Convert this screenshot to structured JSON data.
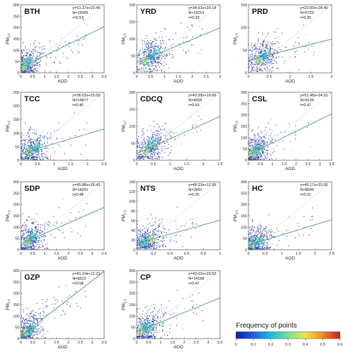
{
  "chart_data": {
    "type": "scatter",
    "xlabel": "AOD",
    "ylabel": "PM",
    "ylabel_sub": "2.5",
    "legend": {
      "title": "Frequency of points",
      "ticks": [
        "0",
        "0.1",
        "0.2",
        "0.3",
        "0.4",
        "0.5",
        "0.6"
      ],
      "colors": [
        "#0b1e9c",
        "#1f5fe0",
        "#22b6e6",
        "#6fe39a",
        "#e8e64a",
        "#f08a2a",
        "#c81a1a"
      ]
    },
    "panels": [
      {
        "region": "BTH",
        "stats": [
          "y=51.37x+23.40",
          "N=15005",
          "r=0.53"
        ],
        "slope": 51.37,
        "intercept": 23.4,
        "xlim": [
          0,
          3.5
        ],
        "ylim": [
          0,
          300
        ],
        "xticks": [
          "0",
          "0.5",
          "1",
          "1.5",
          "2",
          "2.5",
          "3",
          "3.5"
        ],
        "yticks": [
          "0",
          "50",
          "100",
          "150",
          "200",
          "250",
          "300"
        ],
        "density": [
          [
            0.25,
            35
          ],
          [
            0.35,
            55
          ],
          [
            0.15,
            25
          ]
        ]
      },
      {
        "region": "YRD",
        "stats": [
          "y=34.53x+29.18",
          "N=15214",
          "r=0.33"
        ],
        "slope": 34.53,
        "intercept": 29.18,
        "xlim": [
          0,
          3
        ],
        "ylim": [
          0,
          200
        ],
        "xticks": [
          "0",
          "0.5",
          "1",
          "1.5",
          "2",
          "2.5",
          "3"
        ],
        "yticks": [
          "0",
          "50",
          "100",
          "150",
          "200"
        ],
        "density": [
          [
            0.5,
            45
          ],
          [
            0.7,
            60
          ],
          [
            0.35,
            35
          ]
        ]
      },
      {
        "region": "PRD",
        "stats": [
          "y=23.00x+28.40",
          "N=5723",
          "r=0.30"
        ],
        "slope": 23.0,
        "intercept": 28.4,
        "xlim": [
          0,
          2
        ],
        "ylim": [
          0,
          150
        ],
        "xticks": [
          "0",
          "0.5",
          "1",
          "1.5",
          "2"
        ],
        "yticks": [
          "0",
          "50",
          "100",
          "150"
        ],
        "density": [
          [
            0.35,
            35
          ],
          [
            0.45,
            40
          ],
          [
            0.25,
            30
          ]
        ]
      },
      {
        "region": "TCC",
        "stats": [
          "y=36.02x+25.00",
          "N=14877",
          "r=0.40"
        ],
        "slope": 36.02,
        "intercept": 25.0,
        "xlim": [
          0,
          2.5
        ],
        "ylim": [
          0,
          250
        ],
        "xticks": [
          "0",
          "0.5",
          "1",
          "1.5",
          "2",
          "2.5"
        ],
        "yticks": [
          "0",
          "50",
          "100",
          "150",
          "200",
          "250"
        ],
        "density": [
          [
            0.35,
            40
          ],
          [
            0.5,
            50
          ],
          [
            0.25,
            30
          ]
        ]
      },
      {
        "region": "CDCQ",
        "stats": [
          "y=43.58x+19.66",
          "N=4559",
          "r=0.53"
        ],
        "slope": 43.58,
        "intercept": 19.66,
        "xlim": [
          0,
          2.5
        ],
        "ylim": [
          0,
          200
        ],
        "xticks": [
          "0",
          "0.5",
          "1",
          "1.5",
          "2",
          "2.5"
        ],
        "yticks": [
          "0",
          "50",
          "100",
          "150",
          "200"
        ],
        "density": [
          [
            0.4,
            40
          ],
          [
            0.55,
            50
          ],
          [
            0.3,
            30
          ]
        ]
      },
      {
        "region": "CSL",
        "stats": [
          "y=51.48x+24.91",
          "N=9128",
          "r=0.47"
        ],
        "slope": 51.48,
        "intercept": 24.91,
        "xlim": [
          0,
          3.5
        ],
        "ylim": [
          0,
          300
        ],
        "xticks": [
          "0",
          "0.5",
          "1",
          "1.5",
          "2",
          "2.5",
          "3",
          "3.5"
        ],
        "yticks": [
          "0",
          "50",
          "100",
          "150",
          "200",
          "250",
          "300"
        ],
        "density": [
          [
            0.3,
            40
          ],
          [
            0.45,
            50
          ],
          [
            0.2,
            30
          ]
        ]
      },
      {
        "region": "SDP",
        "stats": [
          "y=45.88x+26.42",
          "N=14201",
          "r=0.48"
        ],
        "slope": 45.88,
        "intercept": 26.42,
        "xlim": [
          0,
          3.5
        ],
        "ylim": [
          0,
          300
        ],
        "xticks": [
          "0",
          "0.5",
          "1",
          "1.5",
          "2",
          "2.5",
          "3",
          "3.5"
        ],
        "yticks": [
          "0",
          "50",
          "100",
          "150",
          "200",
          "250",
          "300"
        ],
        "density": [
          [
            0.4,
            50
          ],
          [
            0.55,
            60
          ],
          [
            0.25,
            35
          ]
        ]
      },
      {
        "region": "NTS",
        "stats": [
          "y=48.23x+12.95",
          "N=2663",
          "r=0.26"
        ],
        "slope": 48.23,
        "intercept": 12.95,
        "xlim": [
          0,
          1
        ],
        "ylim": [
          0,
          140
        ],
        "xticks": [
          "0",
          "0.2",
          "0.4",
          "0.6",
          "0.8",
          "1"
        ],
        "yticks": [
          "0",
          "20",
          "40",
          "60",
          "80",
          "100",
          "120",
          "140"
        ],
        "density": [
          [
            0.12,
            18
          ],
          [
            0.1,
            14
          ],
          [
            0.18,
            22
          ]
        ]
      },
      {
        "region": "HC",
        "stats": [
          "y=45.17x+20.30",
          "N=8044",
          "r=0.31"
        ],
        "slope": 45.17,
        "intercept": 20.3,
        "xlim": [
          0,
          2.5
        ],
        "ylim": [
          0,
          300
        ],
        "xticks": [
          "0",
          "0.5",
          "1",
          "1.5",
          "2",
          "2.5"
        ],
        "yticks": [
          "0",
          "50",
          "100",
          "150",
          "200",
          "250",
          "300"
        ],
        "density": [
          [
            0.2,
            30
          ],
          [
            0.35,
            40
          ],
          [
            0.12,
            22
          ]
        ]
      },
      {
        "region": "GZP",
        "stats": [
          "y=81.10x+12.21",
          "N=6523",
          "r=0.58"
        ],
        "slope": 81.1,
        "intercept": 12.21,
        "xlim": [
          0,
          3.5
        ],
        "ylim": [
          0,
          300
        ],
        "xticks": [
          "0",
          "0.5",
          "1",
          "1.5",
          "2",
          "2.5",
          "3",
          "3.5"
        ],
        "yticks": [
          "0",
          "50",
          "100",
          "150",
          "200",
          "250",
          "300"
        ],
        "density": [
          [
            0.3,
            35
          ],
          [
            0.5,
            50
          ],
          [
            0.2,
            25
          ]
        ]
      },
      {
        "region": "CP",
        "stats": [
          "y=43.02x+29.52",
          "N=14168",
          "r=0.47"
        ],
        "slope": 43.02,
        "intercept": 29.52,
        "xlim": [
          0,
          3.5
        ],
        "ylim": [
          0,
          300
        ],
        "xticks": [
          "0",
          "0.5",
          "1",
          "1.5",
          "2",
          "2.5",
          "3",
          "3.5"
        ],
        "yticks": [
          "0",
          "50",
          "100",
          "150",
          "200",
          "250",
          "300"
        ],
        "density": [
          [
            0.4,
            45
          ],
          [
            0.55,
            55
          ],
          [
            0.25,
            35
          ]
        ]
      }
    ]
  }
}
